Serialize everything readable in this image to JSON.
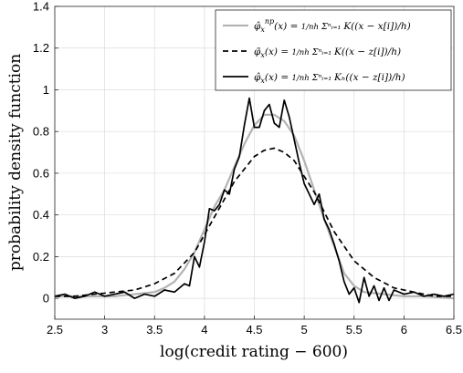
{
  "chart_data": {
    "type": "line",
    "title": "",
    "xlabel": "log(credit rating − 600)",
    "ylabel": "probability density function",
    "xlim": [
      2.5,
      6.5
    ],
    "ylim": [
      -0.1,
      1.4
    ],
    "xticks": [
      "2.5",
      "3",
      "3.5",
      "4",
      "4.5",
      "5",
      "5.5",
      "6",
      "6.5"
    ],
    "yticks": [
      "0",
      "0.2",
      "0.4",
      "0.6",
      "0.8",
      "1",
      "1.2",
      "1.4"
    ],
    "grid": true,
    "legend_position": "top-right",
    "series": [
      {
        "name": "φ̂ₓⁿᵖ(x) = (1/nh) Σᵢ₌₁ⁿ K((x − x[i])/h)",
        "color": "#b3b3b3",
        "dash": "solid",
        "x": [
          2.5,
          2.7,
          2.9,
          3.1,
          3.3,
          3.5,
          3.6,
          3.7,
          3.8,
          3.9,
          4.0,
          4.1,
          4.2,
          4.3,
          4.4,
          4.5,
          4.6,
          4.7,
          4.8,
          4.9,
          5.0,
          5.1,
          5.2,
          5.3,
          5.4,
          5.5,
          5.6,
          5.8,
          6.0,
          6.2,
          6.5
        ],
        "y": [
          0.01,
          0.01,
          0.01,
          0.01,
          0.02,
          0.03,
          0.05,
          0.08,
          0.14,
          0.22,
          0.33,
          0.44,
          0.52,
          0.63,
          0.74,
          0.83,
          0.88,
          0.88,
          0.85,
          0.78,
          0.66,
          0.52,
          0.38,
          0.25,
          0.12,
          0.06,
          0.03,
          0.02,
          0.01,
          0.01,
          0.0
        ]
      },
      {
        "name": "φ̃ₓ(x) = (1/nh) Σᵢ₌₁ⁿ K((x − z[i])/h)",
        "color": "#000000",
        "dash": "dashed",
        "x": [
          2.5,
          2.7,
          2.9,
          3.1,
          3.3,
          3.5,
          3.7,
          3.9,
          4.1,
          4.3,
          4.5,
          4.6,
          4.7,
          4.8,
          4.9,
          5.1,
          5.3,
          5.5,
          5.7,
          5.9,
          6.1,
          6.3,
          6.5
        ],
        "y": [
          0.01,
          0.01,
          0.02,
          0.03,
          0.04,
          0.07,
          0.12,
          0.22,
          0.39,
          0.56,
          0.68,
          0.71,
          0.72,
          0.7,
          0.66,
          0.51,
          0.32,
          0.18,
          0.1,
          0.05,
          0.03,
          0.01,
          0.01
        ]
      },
      {
        "name": "φ̂ₓ(x) = (1/nh) Σᵢ₌₁ⁿ Kₕ((x − z[i])/h)",
        "color": "#000000",
        "dash": "solid",
        "x": [
          2.5,
          2.6,
          2.7,
          2.8,
          2.9,
          3.0,
          3.1,
          3.2,
          3.3,
          3.4,
          3.5,
          3.6,
          3.7,
          3.8,
          3.85,
          3.9,
          3.95,
          4.0,
          4.05,
          4.1,
          4.15,
          4.2,
          4.25,
          4.3,
          4.35,
          4.4,
          4.45,
          4.5,
          4.55,
          4.6,
          4.65,
          4.7,
          4.75,
          4.8,
          4.85,
          4.9,
          4.95,
          5.0,
          5.05,
          5.1,
          5.15,
          5.2,
          5.25,
          5.3,
          5.35,
          5.4,
          5.45,
          5.5,
          5.55,
          5.6,
          5.65,
          5.7,
          5.75,
          5.8,
          5.85,
          5.9,
          6.0,
          6.1,
          6.2,
          6.3,
          6.4,
          6.5
        ],
        "y": [
          0.01,
          0.02,
          0.0,
          0.01,
          0.03,
          0.01,
          0.02,
          0.03,
          0.0,
          0.02,
          0.01,
          0.04,
          0.03,
          0.07,
          0.06,
          0.2,
          0.15,
          0.27,
          0.43,
          0.42,
          0.45,
          0.52,
          0.5,
          0.62,
          0.68,
          0.83,
          0.96,
          0.82,
          0.82,
          0.9,
          0.93,
          0.84,
          0.82,
          0.95,
          0.87,
          0.76,
          0.65,
          0.55,
          0.5,
          0.45,
          0.5,
          0.38,
          0.33,
          0.26,
          0.18,
          0.08,
          0.02,
          0.05,
          -0.02,
          0.1,
          0.01,
          0.06,
          -0.01,
          0.05,
          -0.01,
          0.04,
          0.02,
          0.03,
          0.01,
          0.02,
          0.01,
          0.02
        ]
      }
    ],
    "legend": [
      {
        "label_main": "φ̂",
        "label_sub": "x",
        "label_sup": "np",
        "label_rest": "(x) = ",
        "frac": "1/nh",
        "sum": "Σⁿᵢ₌₁",
        "kernel": "K((x − x[i])/h)"
      },
      {
        "label_main": "φ̃",
        "label_sub": "x",
        "label_sup": "",
        "label_rest": "(x) = ",
        "frac": "1/nh",
        "sum": "Σⁿᵢ₌₁",
        "kernel": "K((x − z[i])/h)"
      },
      {
        "label_main": "φ̂",
        "label_sub": "x",
        "label_sup": "",
        "label_rest": "(x) = ",
        "frac": "1/nh",
        "sum": "Σⁿᵢ₌₁",
        "kernel": "Kₕ((x − z[i])/h)"
      }
    ]
  }
}
